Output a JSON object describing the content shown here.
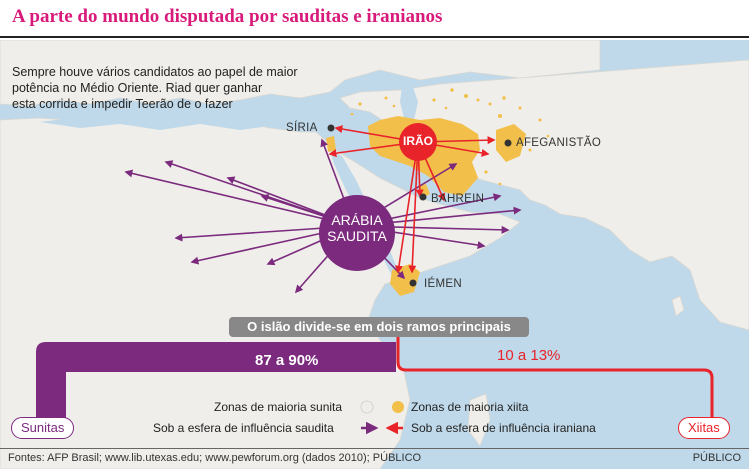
{
  "title": "A parte do mundo disputada por sauditas e iranianos",
  "intro": {
    "line1": "Sempre houve vários candidatos ao papel de maior",
    "line2": "potência no Médio Oriente. Riad quer ganhar",
    "line3": "esta corrida e impedir Teerão de o fazer"
  },
  "labels": {
    "siria": "SÍRIA",
    "afeganistao": "AFEGANISTÃO",
    "bahrein": "BAHREIN",
    "iemen": "IÉMEN",
    "irao": "IRÃO",
    "arabia_line1": "ARÁBIA",
    "arabia_line2": "SAUDITA"
  },
  "banner": "O islão divide-se em dois ramos principais",
  "branches": {
    "sunni_percent": "87 a 90%",
    "shia_percent": "10 a 13%",
    "sunni_label": "Sunitas",
    "shia_label": "Xiitas"
  },
  "legend": {
    "sunni_zone": "Zonas de maioria sunita",
    "shia_zone": "Zonas de maioria xiita",
    "saudi_sphere": "Sob a esfera de influência saudita",
    "iran_sphere": "Sob a esfera de influência iraniana"
  },
  "footer": {
    "sources": "Fontes: AFP Brasil; www.lib.utexas.edu; www.pewforum.org (dados 2010); PÚBLICO",
    "credit": "PÚBLICO"
  },
  "colors": {
    "title": "#d81b7a",
    "saudi": "#7b2a7e",
    "iran": "#e8232a",
    "shia_zone": "#f2c04a",
    "land": "#efeeea",
    "sea": "#bfd9ea"
  }
}
